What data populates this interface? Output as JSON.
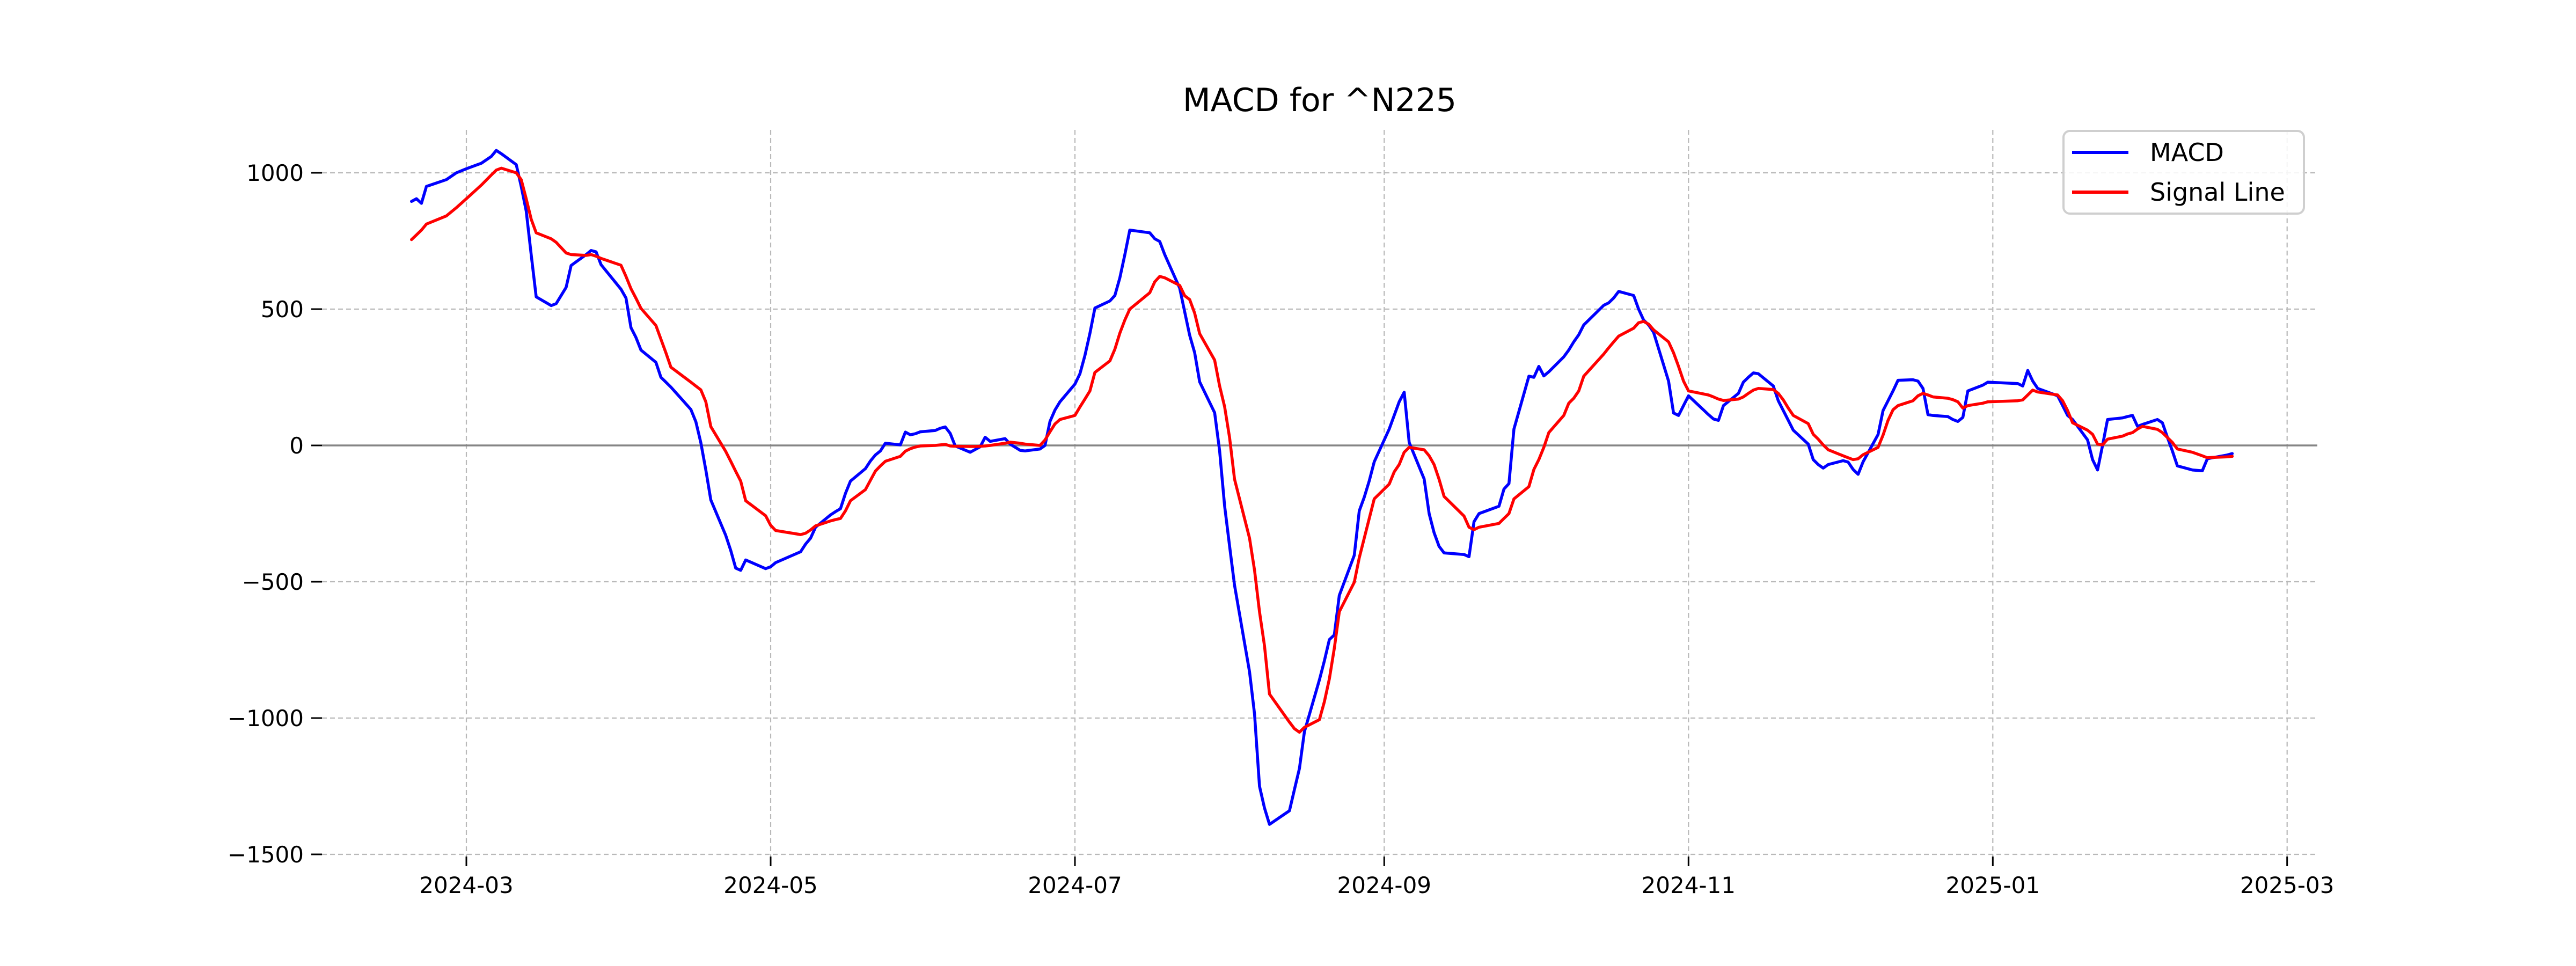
{
  "title": "MACD for ^N225",
  "legend": {
    "items": [
      {
        "label": "MACD",
        "color": "#0000ff"
      },
      {
        "label": "Signal Line",
        "color": "#ff0000"
      }
    ]
  },
  "axes": {
    "y_ticks": [
      1000,
      500,
      0,
      -500,
      -1000,
      -1500
    ],
    "x_ticks": [
      {
        "label": "2024-03",
        "date": "2024-03-01"
      },
      {
        "label": "2024-05",
        "date": "2024-05-01"
      },
      {
        "label": "2024-07",
        "date": "2024-07-01"
      },
      {
        "label": "2024-09",
        "date": "2024-09-01"
      },
      {
        "label": "2024-11",
        "date": "2024-11-01"
      },
      {
        "label": "2025-01",
        "date": "2025-01-01"
      },
      {
        "label": "2025-03",
        "date": "2025-03-01"
      }
    ]
  },
  "chart_data": {
    "type": "line",
    "title": "MACD for ^N225",
    "xlabel": "",
    "ylabel": "",
    "ylim": [
      -1508,
      1157
    ],
    "xlim": [
      "2024-01-31",
      "2025-03-08"
    ],
    "grid": true,
    "grid_color": "#b9b9b9",
    "zero_line_color": "#858585",
    "legend_position": "upper right",
    "series": [
      {
        "name": "MACD",
        "color": "#0000ff"
      },
      {
        "name": "Signal Line",
        "color": "#ff0000"
      }
    ],
    "points": [
      [
        "2024-02-19",
        895,
        755
      ],
      [
        "2024-02-20",
        905,
        772
      ],
      [
        "2024-02-21",
        888,
        790
      ],
      [
        "2024-02-22",
        950,
        812
      ],
      [
        "2024-02-26",
        975,
        842
      ],
      [
        "2024-02-28",
        1000,
        872
      ],
      [
        "2024-03-01",
        1015,
        905
      ],
      [
        "2024-03-04",
        1035,
        955
      ],
      [
        "2024-03-06",
        1060,
        992
      ],
      [
        "2024-03-07",
        1082,
        1010
      ],
      [
        "2024-03-08",
        1070,
        1017
      ],
      [
        "2024-03-11",
        1030,
        1000
      ],
      [
        "2024-03-12",
        950,
        975
      ],
      [
        "2024-03-13",
        860,
        905
      ],
      [
        "2024-03-14",
        700,
        830
      ],
      [
        "2024-03-15",
        545,
        780
      ],
      [
        "2024-03-18",
        513,
        758
      ],
      [
        "2024-03-19",
        520,
        745
      ],
      [
        "2024-03-21",
        580,
        706
      ],
      [
        "2024-03-22",
        660,
        700
      ],
      [
        "2024-03-25",
        700,
        697
      ],
      [
        "2024-03-26",
        715,
        700
      ],
      [
        "2024-03-27",
        710,
        694
      ],
      [
        "2024-03-28",
        663,
        686
      ],
      [
        "2024-04-01",
        573,
        661
      ],
      [
        "2024-04-02",
        541,
        620
      ],
      [
        "2024-04-03",
        432,
        575
      ],
      [
        "2024-04-04",
        396,
        540
      ],
      [
        "2024-04-05",
        350,
        503
      ],
      [
        "2024-04-08",
        305,
        440
      ],
      [
        "2024-04-09",
        250,
        390
      ],
      [
        "2024-04-10",
        232,
        340
      ],
      [
        "2024-04-11",
        214,
        287
      ],
      [
        "2024-04-15",
        132,
        232
      ],
      [
        "2024-04-16",
        87,
        218
      ],
      [
        "2024-04-17",
        10,
        204
      ],
      [
        "2024-04-18",
        -90,
        160
      ],
      [
        "2024-04-19",
        -200,
        69
      ],
      [
        "2024-04-22",
        -330,
        -22
      ],
      [
        "2024-04-23",
        -385,
        -58
      ],
      [
        "2024-04-24",
        -450,
        -95
      ],
      [
        "2024-04-25",
        -458,
        -131
      ],
      [
        "2024-04-26",
        -420,
        -203
      ],
      [
        "2024-04-30",
        -452,
        -258
      ],
      [
        "2024-05-01",
        -445,
        -293
      ],
      [
        "2024-05-02",
        -430,
        -312
      ],
      [
        "2024-05-07",
        -390,
        -327
      ],
      [
        "2024-05-08",
        -362,
        -322
      ],
      [
        "2024-05-09",
        -340,
        -310
      ],
      [
        "2024-05-10",
        -300,
        -295
      ],
      [
        "2024-05-13",
        -255,
        -277
      ],
      [
        "2024-05-14",
        -243,
        -272
      ],
      [
        "2024-05-15",
        -232,
        -268
      ],
      [
        "2024-05-16",
        -176,
        -240
      ],
      [
        "2024-05-17",
        -131,
        -203
      ],
      [
        "2024-05-20",
        -85,
        -162
      ],
      [
        "2024-05-21",
        -57,
        -128
      ],
      [
        "2024-05-22",
        -35,
        -94
      ],
      [
        "2024-05-23",
        -20,
        -75
      ],
      [
        "2024-05-24",
        8,
        -58
      ],
      [
        "2024-05-27",
        2,
        -40
      ],
      [
        "2024-05-28",
        49,
        -21
      ],
      [
        "2024-05-29",
        39,
        -12
      ],
      [
        "2024-05-30",
        43,
        -6
      ],
      [
        "2024-05-31",
        50,
        -2
      ],
      [
        "2024-06-03",
        55,
        0
      ],
      [
        "2024-06-04",
        63,
        2
      ],
      [
        "2024-06-05",
        68,
        4
      ],
      [
        "2024-06-06",
        44,
        -2
      ],
      [
        "2024-06-07",
        -2,
        -3
      ],
      [
        "2024-06-10",
        -25,
        -4
      ],
      [
        "2024-06-11",
        -15,
        -4
      ],
      [
        "2024-06-12",
        -5,
        -3
      ],
      [
        "2024-06-13",
        30,
        -2
      ],
      [
        "2024-06-14",
        15,
        0
      ],
      [
        "2024-06-17",
        25,
        8
      ],
      [
        "2024-06-18",
        5,
        12
      ],
      [
        "2024-06-20",
        -18,
        8
      ],
      [
        "2024-06-21",
        -20,
        5
      ],
      [
        "2024-06-24",
        -13,
        0
      ],
      [
        "2024-06-25",
        0,
        20
      ],
      [
        "2024-06-26",
        88,
        50
      ],
      [
        "2024-06-27",
        130,
        79
      ],
      [
        "2024-06-28",
        160,
        95
      ],
      [
        "2024-07-01",
        225,
        110
      ],
      [
        "2024-07-02",
        263,
        141
      ],
      [
        "2024-07-03",
        330,
        170
      ],
      [
        "2024-07-04",
        411,
        200
      ],
      [
        "2024-07-05",
        504,
        268
      ],
      [
        "2024-07-08",
        530,
        310
      ],
      [
        "2024-07-09",
        550,
        353
      ],
      [
        "2024-07-10",
        615,
        412
      ],
      [
        "2024-07-11",
        700,
        460
      ],
      [
        "2024-07-12",
        790,
        500
      ],
      [
        "2024-07-16",
        780,
        560
      ],
      [
        "2024-07-17",
        758,
        600
      ],
      [
        "2024-07-18",
        748,
        620
      ],
      [
        "2024-07-19",
        700,
        615
      ],
      [
        "2024-07-22",
        577,
        587
      ],
      [
        "2024-07-23",
        490,
        549
      ],
      [
        "2024-07-24",
        404,
        535
      ],
      [
        "2024-07-25",
        340,
        485
      ],
      [
        "2024-07-26",
        233,
        410
      ],
      [
        "2024-07-29",
        120,
        313
      ],
      [
        "2024-07-30",
        -20,
        218
      ],
      [
        "2024-07-31",
        -222,
        142
      ],
      [
        "2024-08-01",
        -370,
        28
      ],
      [
        "2024-08-02",
        -513,
        -124
      ],
      [
        "2024-08-05",
        -830,
        -340
      ],
      [
        "2024-08-06",
        -984,
        -457
      ],
      [
        "2024-08-07",
        -1250,
        -610
      ],
      [
        "2024-08-08",
        -1330,
        -735
      ],
      [
        "2024-08-09",
        -1390,
        -912
      ],
      [
        "2024-08-13",
        -1340,
        -1015
      ],
      [
        "2024-08-14",
        -1262,
        -1039
      ],
      [
        "2024-08-15",
        -1185,
        -1052
      ],
      [
        "2024-08-16",
        -1050,
        -1034
      ],
      [
        "2024-08-19",
        -860,
        -1006
      ],
      [
        "2024-08-20",
        -790,
        -940
      ],
      [
        "2024-08-21",
        -712,
        -856
      ],
      [
        "2024-08-22",
        -695,
        -744
      ],
      [
        "2024-08-23",
        -550,
        -610
      ],
      [
        "2024-08-26",
        -403,
        -502
      ],
      [
        "2024-08-27",
        -240,
        -412
      ],
      [
        "2024-08-28",
        -190,
        -340
      ],
      [
        "2024-08-29",
        -130,
        -268
      ],
      [
        "2024-08-30",
        -60,
        -196
      ],
      [
        "2024-09-02",
        60,
        -142
      ],
      [
        "2024-09-03",
        110,
        -97
      ],
      [
        "2024-09-04",
        160,
        -70
      ],
      [
        "2024-09-05",
        195,
        -25
      ],
      [
        "2024-09-06",
        11,
        -7
      ],
      [
        "2024-09-09",
        -123,
        -16
      ],
      [
        "2024-09-10",
        -250,
        -38
      ],
      [
        "2024-09-11",
        -320,
        -70
      ],
      [
        "2024-09-12",
        -370,
        -124
      ],
      [
        "2024-09-13",
        -394,
        -187
      ],
      [
        "2024-09-17",
        -400,
        -259
      ],
      [
        "2024-09-18",
        -408,
        -300
      ],
      [
        "2024-09-19",
        -280,
        -309
      ],
      [
        "2024-09-20",
        -250,
        -300
      ],
      [
        "2024-09-24",
        -223,
        -286
      ],
      [
        "2024-09-25",
        -160,
        -268
      ],
      [
        "2024-09-26",
        -140,
        -250
      ],
      [
        "2024-09-27",
        60,
        -196
      ],
      [
        "2024-09-30",
        254,
        -151
      ],
      [
        "2024-10-01",
        250,
        -88
      ],
      [
        "2024-10-02",
        290,
        -52
      ],
      [
        "2024-10-03",
        255,
        -7
      ],
      [
        "2024-10-04",
        270,
        47
      ],
      [
        "2024-10-07",
        325,
        110
      ],
      [
        "2024-10-08",
        350,
        155
      ],
      [
        "2024-10-09",
        380,
        173
      ],
      [
        "2024-10-10",
        406,
        200
      ],
      [
        "2024-10-11",
        442,
        254
      ],
      [
        "2024-10-15",
        514,
        335
      ],
      [
        "2024-10-16",
        523,
        358
      ],
      [
        "2024-10-17",
        541,
        380
      ],
      [
        "2024-10-18",
        565,
        401
      ],
      [
        "2024-10-21",
        550,
        430
      ],
      [
        "2024-10-22",
        500,
        450
      ],
      [
        "2024-10-23",
        460,
        455
      ],
      [
        "2024-10-24",
        442,
        445
      ],
      [
        "2024-10-25",
        415,
        424
      ],
      [
        "2024-10-28",
        236,
        380
      ],
      [
        "2024-10-29",
        119,
        340
      ],
      [
        "2024-10-30",
        110,
        290
      ],
      [
        "2024-10-31",
        146,
        236
      ],
      [
        "2024-11-01",
        182,
        200
      ],
      [
        "2024-11-05",
        113,
        185
      ],
      [
        "2024-11-06",
        97,
        178
      ],
      [
        "2024-11-07",
        92,
        170
      ],
      [
        "2024-11-08",
        146,
        165
      ],
      [
        "2024-11-11",
        191,
        170
      ],
      [
        "2024-11-12",
        232,
        178
      ],
      [
        "2024-11-13",
        250,
        191
      ],
      [
        "2024-11-14",
        266,
        203
      ],
      [
        "2024-11-15",
        263,
        209
      ],
      [
        "2024-11-18",
        218,
        205
      ],
      [
        "2024-11-19",
        164,
        191
      ],
      [
        "2024-11-20",
        128,
        167
      ],
      [
        "2024-11-21",
        92,
        137
      ],
      [
        "2024-11-22",
        56,
        110
      ],
      [
        "2024-11-25",
        5,
        80
      ],
      [
        "2024-11-26",
        -52,
        41
      ],
      [
        "2024-11-27",
        -70,
        23
      ],
      [
        "2024-11-28",
        -83,
        2
      ],
      [
        "2024-11-29",
        -70,
        -16
      ],
      [
        "2024-12-02",
        -56,
        -38
      ],
      [
        "2024-12-03",
        -61,
        -45
      ],
      [
        "2024-12-04",
        -88,
        -52
      ],
      [
        "2024-12-05",
        -106,
        -49
      ],
      [
        "2024-12-06",
        -60,
        -34
      ],
      [
        "2024-12-09",
        40,
        -7
      ],
      [
        "2024-12-10",
        128,
        38
      ],
      [
        "2024-12-11",
        164,
        92
      ],
      [
        "2024-12-12",
        200,
        131
      ],
      [
        "2024-12-13",
        239,
        146
      ],
      [
        "2024-12-16",
        241,
        164
      ],
      [
        "2024-12-17",
        236,
        182
      ],
      [
        "2024-12-18",
        209,
        191
      ],
      [
        "2024-12-19",
        113,
        185
      ],
      [
        "2024-12-20",
        110,
        178
      ],
      [
        "2024-12-23",
        106,
        173
      ],
      [
        "2024-12-24",
        95,
        168
      ],
      [
        "2024-12-25",
        88,
        160
      ],
      [
        "2024-12-26",
        103,
        137
      ],
      [
        "2024-12-27",
        200,
        146
      ],
      [
        "2024-12-30",
        221,
        155
      ],
      [
        "2024-12-31",
        232,
        160
      ],
      [
        "2025-01-06",
        227,
        164
      ],
      [
        "2025-01-07",
        218,
        167
      ],
      [
        "2025-01-08",
        275,
        185
      ],
      [
        "2025-01-09",
        236,
        203
      ],
      [
        "2025-01-10",
        209,
        196
      ],
      [
        "2025-01-14",
        182,
        185
      ],
      [
        "2025-01-15",
        146,
        164
      ],
      [
        "2025-01-16",
        110,
        128
      ],
      [
        "2025-01-17",
        95,
        83
      ],
      [
        "2025-01-20",
        20,
        56
      ],
      [
        "2025-01-21",
        -52,
        41
      ],
      [
        "2025-01-22",
        -90,
        5
      ],
      [
        "2025-01-23",
        0,
        2
      ],
      [
        "2025-01-24",
        95,
        23
      ],
      [
        "2025-01-27",
        101,
        34
      ],
      [
        "2025-01-28",
        106,
        42
      ],
      [
        "2025-01-29",
        110,
        47
      ],
      [
        "2025-01-30",
        70,
        60
      ],
      [
        "2025-01-31",
        77,
        70
      ],
      [
        "2025-02-03",
        95,
        59
      ],
      [
        "2025-02-04",
        83,
        47
      ],
      [
        "2025-02-05",
        30,
        29
      ],
      [
        "2025-02-06",
        -20,
        11
      ],
      [
        "2025-02-07",
        -75,
        -13
      ],
      [
        "2025-02-10",
        -90,
        -25
      ],
      [
        "2025-02-12",
        -93,
        -38
      ],
      [
        "2025-02-13",
        -49,
        -45
      ],
      [
        "2025-02-14",
        -45,
        -44
      ],
      [
        "2025-02-17",
        -35,
        -42
      ],
      [
        "2025-02-18",
        -30,
        -40
      ]
    ]
  }
}
